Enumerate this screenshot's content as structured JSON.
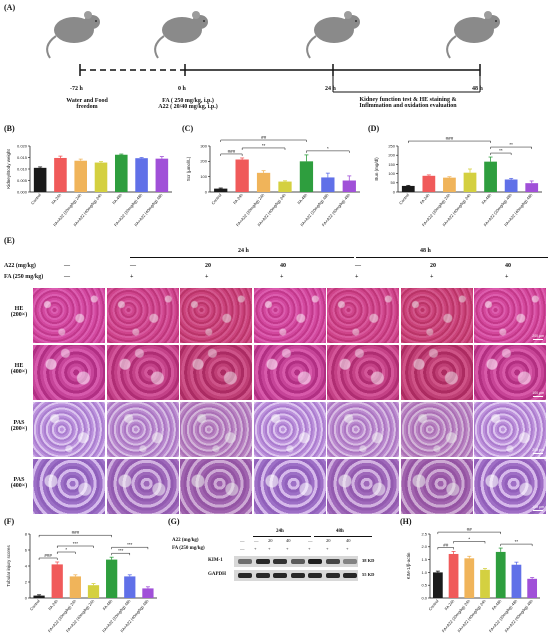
{
  "panels": {
    "A": "(A)",
    "B": "(B)",
    "C": "(C)",
    "D": "(D)",
    "E": "(E)",
    "F": "(F)",
    "G": "(G)",
    "H": "(H)"
  },
  "timeline": {
    "times": [
      "-72 h",
      "0 h",
      "24 h",
      "48 h"
    ],
    "label_water": [
      "Water and Food",
      "freedom"
    ],
    "label_dose": [
      "FA ( 250 mg/kg, i.p.)",
      "A22 ( 20/40 mg/kg, i.p.)"
    ],
    "label_eval": [
      "Kidney function test & HE staining &",
      "Inflmmation and oxidation evaluation"
    ]
  },
  "colors": {
    "control": "#1a1a1a",
    "fa24": "#f05a5a",
    "a22_20_24": "#f0b45a",
    "a22_40_24": "#d4d040",
    "fa48": "#2e9e3e",
    "a22_20_48": "#6070e8",
    "a22_40_48": "#a050d8"
  },
  "chart_data": [
    {
      "panel": "B",
      "type": "bar",
      "ylabel": "Kidney/Body weight",
      "ylim": [
        0,
        0.02
      ],
      "yticks": [
        "0.000",
        "0.005",
        "0.010",
        "0.015",
        "0.020"
      ],
      "categories": [
        "Control",
        "FA 24h",
        "FA+A22 (20mg/kg) 24h",
        "FA+A22 (40mg/kg) 24h",
        "FA 48h",
        "FA+A22 (20mg/kg) 48h",
        "FA+A22 (40mg/kg) 48h"
      ],
      "values": [
        0.0105,
        0.0148,
        0.0136,
        0.0128,
        0.0162,
        0.0147,
        0.0145
      ],
      "errors": [
        0.0004,
        0.0008,
        0.0007,
        0.0004,
        0.0003,
        0.0003,
        0.0009
      ],
      "sig": []
    },
    {
      "panel": "C",
      "type": "bar",
      "ylabel": "Scr (μmol/L)",
      "ylim": [
        0,
        300
      ],
      "yticks": [
        "0",
        "100",
        "200",
        "300"
      ],
      "categories": [
        "Control",
        "FA 24h",
        "FA+A22 (20mg/kg) 24h",
        "FA+A22 (40mg/kg) 24h",
        "FA 48h",
        "FA+A22 (20mg/kg) 48h",
        "FA+A22 (40mg/kg) 48h"
      ],
      "values": [
        22,
        212,
        125,
        68,
        200,
        95,
        75
      ],
      "errors": [
        4,
        10,
        14,
        5,
        42,
        28,
        30
      ],
      "sig": [
        {
          "from": 0,
          "to": 1,
          "label": "###",
          "level": 0
        },
        {
          "from": 1,
          "to": 3,
          "label": "**",
          "level": 1
        },
        {
          "from": 4,
          "to": 6,
          "label": "*",
          "level": 0
        },
        {
          "from": 0,
          "to": 4,
          "label": "##",
          "level": 2
        }
      ]
    },
    {
      "panel": "D",
      "type": "bar",
      "ylabel": "Bun (mg/dl)",
      "ylim": [
        0,
        250
      ],
      "yticks": [
        "0",
        "50",
        "100",
        "150",
        "200",
        "250"
      ],
      "categories": [
        "Control",
        "FA 24h",
        "FA+A22 (20mg/kg) 24h",
        "FA+A22 (40mg/kg) 24h",
        "FA 48h",
        "FA+A22 (20mg/kg) 48h",
        "FA+A22 (40mg/kg) 48h"
      ],
      "values": [
        33,
        88,
        78,
        105,
        165,
        68,
        48
      ],
      "errors": [
        3,
        5,
        5,
        20,
        25,
        6,
        12
      ],
      "sig": [
        {
          "from": 4,
          "to": 5,
          "label": "**",
          "level": 0
        },
        {
          "from": 4,
          "to": 6,
          "label": "**",
          "level": 1
        },
        {
          "from": 0,
          "to": 4,
          "label": "###",
          "level": 2
        }
      ]
    },
    {
      "panel": "F",
      "type": "bar",
      "ylabel": "Tubular injury scores",
      "ylim": [
        0,
        8
      ],
      "yticks": [
        "0",
        "2",
        "4",
        "6",
        "8"
      ],
      "categories": [
        "Control",
        "FA 24h",
        "FA+A22 (20mg/kg) 24h",
        "FA+A22 (40mg/kg) 24h",
        "FA 48h",
        "FA+A22 (20mg/kg) 48h",
        "FA+A22 (40mg/kg) 48h"
      ],
      "values": [
        0.3,
        4.2,
        2.7,
        1.6,
        4.8,
        2.7,
        1.2
      ],
      "errors": [
        0.1,
        0.3,
        0.2,
        0.2,
        0.3,
        0.2,
        0.2
      ],
      "sig": [
        {
          "from": 0,
          "to": 1,
          "label": "###",
          "level": 0
        },
        {
          "from": 1,
          "to": 2,
          "label": "*",
          "level": 1
        },
        {
          "from": 1,
          "to": 3,
          "label": "***",
          "level": 2
        },
        {
          "from": 4,
          "to": 5,
          "label": "***",
          "level": 0
        },
        {
          "from": 4,
          "to": 6,
          "label": "***",
          "level": 1
        },
        {
          "from": 0,
          "to": 4,
          "label": "###",
          "level": 3
        }
      ]
    },
    {
      "panel": "H",
      "type": "bar",
      "ylabel": "KIM-1/β-actin",
      "ylim": [
        0,
        2.5
      ],
      "yticks": [
        "0.0",
        "0.5",
        "1.0",
        "1.5",
        "2.0",
        "2.5"
      ],
      "categories": [
        "Control",
        "FA 24h",
        "FA+A22 (20mg/kg) 24h",
        "FA+A22 (40mg/kg) 24h",
        "FA 48h",
        "FA+A22 (20mg/kg) 48h",
        "FA+A22 (40mg/kg) 48h"
      ],
      "values": [
        1.0,
        1.72,
        1.55,
        1.1,
        1.8,
        1.3,
        0.75
      ],
      "errors": [
        0.05,
        0.1,
        0.08,
        0.05,
        0.15,
        0.1,
        0.05
      ],
      "sig": [
        {
          "from": 0,
          "to": 1,
          "label": "##",
          "level": 0
        },
        {
          "from": 1,
          "to": 3,
          "label": "*",
          "level": 1
        },
        {
          "from": 4,
          "to": 6,
          "label": "**",
          "level": 0
        },
        {
          "from": 0,
          "to": 4,
          "label": "##",
          "level": 2
        }
      ]
    }
  ],
  "histology": {
    "time_24": "24 h",
    "time_48": "48 h",
    "a22_label": "A22 (mg/kg)",
    "fa_label": "FA (250 mg/kg)",
    "a22_values": [
      "—",
      "—",
      "20",
      "40",
      "—",
      "20",
      "40"
    ],
    "fa_values": [
      "—",
      "+",
      "+",
      "+",
      "+",
      "+",
      "+"
    ],
    "rows": [
      {
        "stain": "HE",
        "mag": "(200×)",
        "scale": "200 μm"
      },
      {
        "stain": "HE",
        "mag": "(400×)",
        "scale": "100 μm"
      },
      {
        "stain": "PAS",
        "mag": "(200×)",
        "scale": "200 μm"
      },
      {
        "stain": "PAS",
        "mag": "(400×)",
        "scale": "100 μm"
      }
    ]
  },
  "western": {
    "time_24": "24h",
    "time_48": "48h",
    "a22_label": "A22 (mg/kg)",
    "fa_label": "FA (250 mg/kg)",
    "a22_values": [
      "—",
      "—",
      "20",
      "40",
      "—",
      "20",
      "40"
    ],
    "fa_values": [
      "—",
      "+",
      "+",
      "+",
      "+",
      "+",
      "+"
    ],
    "bands": [
      {
        "name": "KIM-1",
        "size": "38 KD",
        "intensity": [
          0.55,
          0.9,
          0.85,
          0.65,
          0.95,
          0.75,
          0.45
        ]
      },
      {
        "name": "GAPDH",
        "size": "55 KD",
        "intensity": [
          0.9,
          0.9,
          0.9,
          0.9,
          0.9,
          0.9,
          0.9
        ]
      }
    ]
  }
}
